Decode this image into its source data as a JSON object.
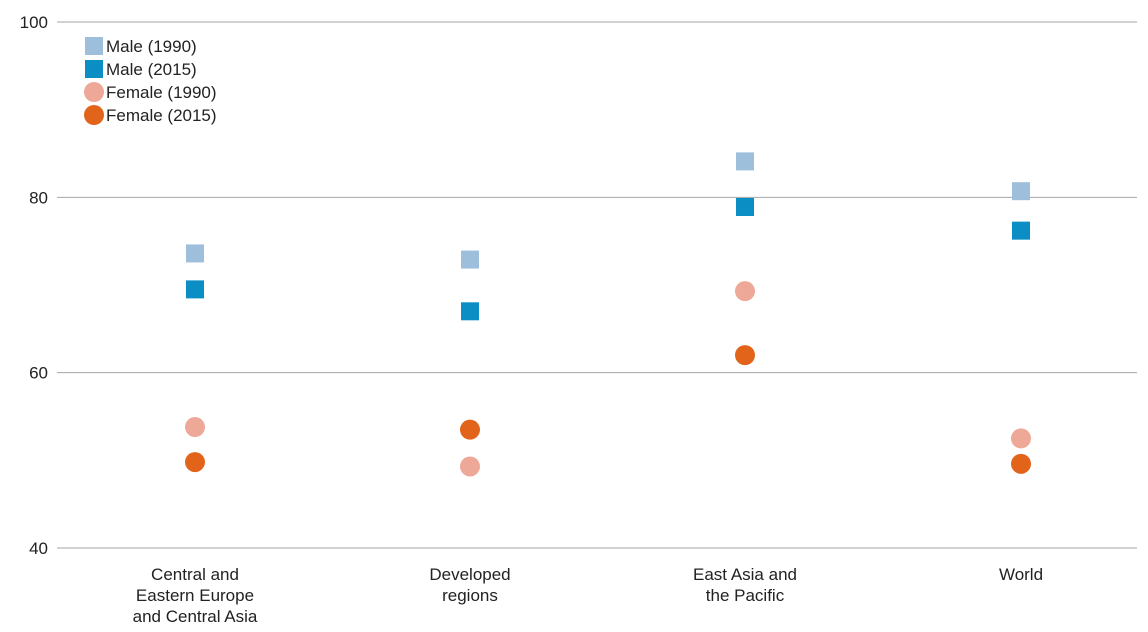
{
  "chart_data": {
    "type": "scatter",
    "title": "",
    "xlabel": "",
    "ylabel": "",
    "categories": [
      [
        "Central and",
        "Eastern Europe",
        "and Central Asia"
      ],
      [
        "Developed",
        "regions"
      ],
      [
        "East Asia and",
        "the Pacific"
      ],
      [
        "World"
      ]
    ],
    "ylim": [
      40,
      100
    ],
    "yticks": [
      40,
      60,
      80,
      100
    ],
    "grid": true,
    "legend_position": "top-left",
    "series": [
      {
        "name": "Male (1990)",
        "marker": "square",
        "color": "#9dbfdc",
        "values": [
          73.6,
          72.9,
          84.1,
          80.7
        ]
      },
      {
        "name": "Male (2015)",
        "marker": "square",
        "color": "#0a8ec4",
        "values": [
          69.5,
          67.0,
          78.9,
          76.2
        ]
      },
      {
        "name": "Female (1990)",
        "marker": "circle",
        "color": "#eea898",
        "values": [
          53.8,
          49.3,
          69.3,
          52.5
        ]
      },
      {
        "name": "Female (2015)",
        "marker": "circle",
        "color": "#e2641b",
        "values": [
          49.8,
          53.5,
          62.0,
          49.6
        ]
      }
    ]
  }
}
